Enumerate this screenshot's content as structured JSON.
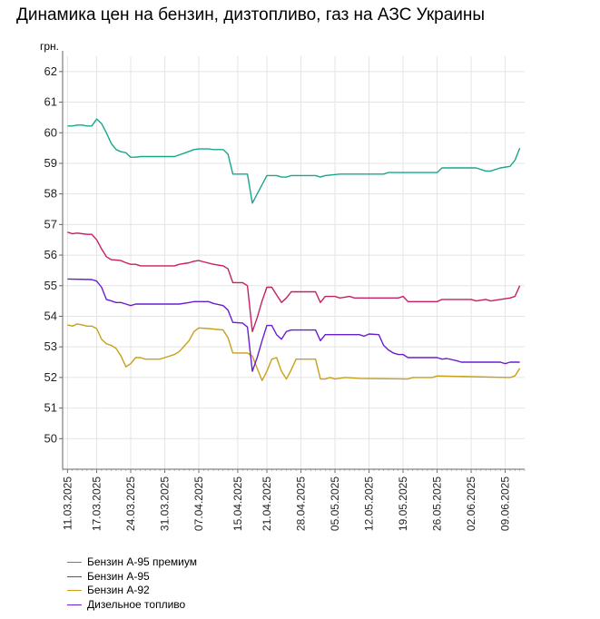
{
  "chart_data": {
    "type": "line",
    "title": "Динамика цен на бензин, дизтопливо, газ на АЗС Украины",
    "ylabel": "грн.",
    "xlabel": "",
    "ylim": [
      49,
      62.5
    ],
    "yticks": [
      50,
      51,
      52,
      53,
      54,
      55,
      56,
      57,
      58,
      59,
      60,
      61,
      62
    ],
    "x_range": [
      "2025-03-10",
      "2025-06-13"
    ],
    "xtick_dates": [
      "2025-03-11",
      "2025-03-17",
      "2025-03-24",
      "2025-03-31",
      "2025-04-07",
      "2025-04-15",
      "2025-04-21",
      "2025-04-28",
      "2025-05-05",
      "2025-05-12",
      "2025-05-19",
      "2025-05-26",
      "2025-06-02",
      "2025-06-09"
    ],
    "xtick_labels": [
      "11.03.2025",
      "17.03.2025",
      "24.03.2025",
      "31.03.2025",
      "07.04.2025",
      "15.04.2025",
      "21.04.2025",
      "28.04.2025",
      "05.05.2025",
      "12.05.2025",
      "19.05.2025",
      "26.05.2025",
      "02.06.2025",
      "09.06.2025"
    ],
    "grid": true,
    "legend_position": "bottom-left",
    "series": [
      {
        "name": "Бензин А-95 премиум",
        "color": "#1aa68c",
        "points": [
          [
            "2025-03-11",
            60.22
          ],
          [
            "2025-03-12",
            60.22
          ],
          [
            "2025-03-13",
            60.25
          ],
          [
            "2025-03-14",
            60.25
          ],
          [
            "2025-03-15",
            60.22
          ],
          [
            "2025-03-16",
            60.22
          ],
          [
            "2025-03-17",
            60.45
          ],
          [
            "2025-03-18",
            60.3
          ],
          [
            "2025-03-19",
            60.0
          ],
          [
            "2025-03-20",
            59.65
          ],
          [
            "2025-03-21",
            59.45
          ],
          [
            "2025-03-22",
            59.38
          ],
          [
            "2025-03-23",
            59.35
          ],
          [
            "2025-03-24",
            59.2
          ],
          [
            "2025-03-25",
            59.2
          ],
          [
            "2025-03-26",
            59.22
          ],
          [
            "2025-03-30",
            59.22
          ],
          [
            "2025-04-02",
            59.22
          ],
          [
            "2025-04-04",
            59.33
          ],
          [
            "2025-04-06",
            59.45
          ],
          [
            "2025-04-07",
            59.47
          ],
          [
            "2025-04-09",
            59.47
          ],
          [
            "2025-04-10",
            59.45
          ],
          [
            "2025-04-12",
            59.45
          ],
          [
            "2025-04-13",
            59.3
          ],
          [
            "2025-04-14",
            58.65
          ],
          [
            "2025-04-16",
            58.65
          ],
          [
            "2025-04-17",
            58.65
          ],
          [
            "2025-04-18",
            57.7
          ],
          [
            "2025-04-19",
            58.0
          ],
          [
            "2025-04-20",
            58.3
          ],
          [
            "2025-04-21",
            58.6
          ],
          [
            "2025-04-23",
            58.6
          ],
          [
            "2025-04-24",
            58.55
          ],
          [
            "2025-04-25",
            58.55
          ],
          [
            "2025-04-26",
            58.6
          ],
          [
            "2025-05-01",
            58.6
          ],
          [
            "2025-05-02",
            58.55
          ],
          [
            "2025-05-03",
            58.6
          ],
          [
            "2025-05-06",
            58.65
          ],
          [
            "2025-05-15",
            58.65
          ],
          [
            "2025-05-16",
            58.7
          ],
          [
            "2025-05-26",
            58.7
          ],
          [
            "2025-05-27",
            58.85
          ],
          [
            "2025-06-03",
            58.85
          ],
          [
            "2025-06-05",
            58.75
          ],
          [
            "2025-06-06",
            58.75
          ],
          [
            "2025-06-08",
            58.85
          ],
          [
            "2025-06-10",
            58.9
          ],
          [
            "2025-06-11",
            59.1
          ],
          [
            "2025-06-12",
            59.5
          ]
        ]
      },
      {
        "name": "Бензин А-95",
        "color": "#c81e64",
        "points": [
          [
            "2025-03-11",
            56.75
          ],
          [
            "2025-03-12",
            56.7
          ],
          [
            "2025-03-13",
            56.72
          ],
          [
            "2025-03-14",
            56.7
          ],
          [
            "2025-03-15",
            56.68
          ],
          [
            "2025-03-16",
            56.68
          ],
          [
            "2025-03-17",
            56.5
          ],
          [
            "2025-03-18",
            56.2
          ],
          [
            "2025-03-19",
            55.95
          ],
          [
            "2025-03-20",
            55.85
          ],
          [
            "2025-03-22",
            55.82
          ],
          [
            "2025-03-23",
            55.75
          ],
          [
            "2025-03-24",
            55.7
          ],
          [
            "2025-03-25",
            55.7
          ],
          [
            "2025-03-26",
            55.65
          ],
          [
            "2025-04-02",
            55.65
          ],
          [
            "2025-04-03",
            55.7
          ],
          [
            "2025-04-05",
            55.75
          ],
          [
            "2025-04-06",
            55.8
          ],
          [
            "2025-04-07",
            55.82
          ],
          [
            "2025-04-08",
            55.78
          ],
          [
            "2025-04-10",
            55.7
          ],
          [
            "2025-04-12",
            55.65
          ],
          [
            "2025-04-13",
            55.55
          ],
          [
            "2025-04-14",
            55.1
          ],
          [
            "2025-04-16",
            55.1
          ],
          [
            "2025-04-17",
            55.0
          ],
          [
            "2025-04-18",
            53.5
          ],
          [
            "2025-04-19",
            53.95
          ],
          [
            "2025-04-20",
            54.5
          ],
          [
            "2025-04-21",
            54.95
          ],
          [
            "2025-04-22",
            54.95
          ],
          [
            "2025-04-23",
            54.7
          ],
          [
            "2025-04-24",
            54.45
          ],
          [
            "2025-04-25",
            54.6
          ],
          [
            "2025-04-26",
            54.8
          ],
          [
            "2025-05-01",
            54.8
          ],
          [
            "2025-05-02",
            54.45
          ],
          [
            "2025-05-03",
            54.65
          ],
          [
            "2025-05-05",
            54.65
          ],
          [
            "2025-05-06",
            54.6
          ],
          [
            "2025-05-08",
            54.65
          ],
          [
            "2025-05-09",
            54.6
          ],
          [
            "2025-05-18",
            54.6
          ],
          [
            "2025-05-19",
            54.65
          ],
          [
            "2025-05-20",
            54.48
          ],
          [
            "2025-05-26",
            54.48
          ],
          [
            "2025-05-27",
            54.55
          ],
          [
            "2025-06-02",
            54.55
          ],
          [
            "2025-06-03",
            54.5
          ],
          [
            "2025-06-05",
            54.55
          ],
          [
            "2025-06-06",
            54.5
          ],
          [
            "2025-06-08",
            54.55
          ],
          [
            "2025-06-10",
            54.6
          ],
          [
            "2025-06-11",
            54.65
          ],
          [
            "2025-06-12",
            55.0
          ]
        ]
      },
      {
        "name": "Бензин А-92",
        "color": "#c8a018",
        "points": [
          [
            "2025-03-11",
            53.72
          ],
          [
            "2025-03-12",
            53.68
          ],
          [
            "2025-03-13",
            53.75
          ],
          [
            "2025-03-14",
            53.72
          ],
          [
            "2025-03-15",
            53.68
          ],
          [
            "2025-03-16",
            53.68
          ],
          [
            "2025-03-17",
            53.6
          ],
          [
            "2025-03-18",
            53.25
          ],
          [
            "2025-03-19",
            53.1
          ],
          [
            "2025-03-20",
            53.05
          ],
          [
            "2025-03-21",
            52.95
          ],
          [
            "2025-03-22",
            52.7
          ],
          [
            "2025-03-23",
            52.35
          ],
          [
            "2025-03-24",
            52.45
          ],
          [
            "2025-03-25",
            52.65
          ],
          [
            "2025-03-26",
            52.65
          ],
          [
            "2025-03-27",
            52.6
          ],
          [
            "2025-03-30",
            52.6
          ],
          [
            "2025-03-31",
            52.65
          ],
          [
            "2025-04-02",
            52.75
          ],
          [
            "2025-04-03",
            52.85
          ],
          [
            "2025-04-05",
            53.2
          ],
          [
            "2025-04-06",
            53.5
          ],
          [
            "2025-04-07",
            53.62
          ],
          [
            "2025-04-09",
            53.6
          ],
          [
            "2025-04-12",
            53.55
          ],
          [
            "2025-04-13",
            53.3
          ],
          [
            "2025-04-14",
            52.8
          ],
          [
            "2025-04-17",
            52.8
          ],
          [
            "2025-04-18",
            52.7
          ],
          [
            "2025-04-19",
            52.3
          ],
          [
            "2025-04-20",
            51.9
          ],
          [
            "2025-04-21",
            52.2
          ],
          [
            "2025-04-22",
            52.6
          ],
          [
            "2025-04-23",
            52.65
          ],
          [
            "2025-04-24",
            52.2
          ],
          [
            "2025-04-25",
            51.95
          ],
          [
            "2025-04-26",
            52.25
          ],
          [
            "2025-04-27",
            52.6
          ],
          [
            "2025-05-01",
            52.6
          ],
          [
            "2025-05-02",
            51.95
          ],
          [
            "2025-05-03",
            51.95
          ],
          [
            "2025-05-04",
            52.0
          ],
          [
            "2025-05-05",
            51.95
          ],
          [
            "2025-05-07",
            52.0
          ],
          [
            "2025-05-10",
            51.97
          ],
          [
            "2025-05-20",
            51.95
          ],
          [
            "2025-05-21",
            52.0
          ],
          [
            "2025-05-25",
            52.0
          ],
          [
            "2025-05-26",
            52.05
          ],
          [
            "2025-06-10",
            52.0
          ],
          [
            "2025-06-11",
            52.05
          ],
          [
            "2025-06-12",
            52.3
          ]
        ]
      },
      {
        "name": "Дизельное топливо",
        "color": "#6a1ed0",
        "points": [
          [
            "2025-03-11",
            55.22
          ],
          [
            "2025-03-16",
            55.2
          ],
          [
            "2025-03-17",
            55.15
          ],
          [
            "2025-03-18",
            54.95
          ],
          [
            "2025-03-19",
            54.55
          ],
          [
            "2025-03-20",
            54.5
          ],
          [
            "2025-03-21",
            54.45
          ],
          [
            "2025-03-22",
            54.45
          ],
          [
            "2025-03-23",
            54.4
          ],
          [
            "2025-03-24",
            54.35
          ],
          [
            "2025-03-25",
            54.4
          ],
          [
            "2025-04-03",
            54.4
          ],
          [
            "2025-04-05",
            54.45
          ],
          [
            "2025-04-06",
            54.48
          ],
          [
            "2025-04-09",
            54.48
          ],
          [
            "2025-04-10",
            54.42
          ],
          [
            "2025-04-12",
            54.35
          ],
          [
            "2025-04-13",
            54.2
          ],
          [
            "2025-04-14",
            53.8
          ],
          [
            "2025-04-16",
            53.78
          ],
          [
            "2025-04-17",
            53.65
          ],
          [
            "2025-04-18",
            52.2
          ],
          [
            "2025-04-19",
            52.65
          ],
          [
            "2025-04-20",
            53.2
          ],
          [
            "2025-04-21",
            53.7
          ],
          [
            "2025-04-22",
            53.7
          ],
          [
            "2025-04-23",
            53.4
          ],
          [
            "2025-04-24",
            53.25
          ],
          [
            "2025-04-25",
            53.5
          ],
          [
            "2025-04-26",
            53.55
          ],
          [
            "2025-05-01",
            53.55
          ],
          [
            "2025-05-02",
            53.2
          ],
          [
            "2025-05-03",
            53.4
          ],
          [
            "2025-05-10",
            53.4
          ],
          [
            "2025-05-11",
            53.35
          ],
          [
            "2025-05-12",
            53.42
          ],
          [
            "2025-05-14",
            53.4
          ],
          [
            "2025-05-15",
            53.05
          ],
          [
            "2025-05-16",
            52.9
          ],
          [
            "2025-05-17",
            52.8
          ],
          [
            "2025-05-18",
            52.75
          ],
          [
            "2025-05-19",
            52.75
          ],
          [
            "2025-05-20",
            52.65
          ],
          [
            "2025-05-26",
            52.65
          ],
          [
            "2025-05-27",
            52.6
          ],
          [
            "2025-05-28",
            52.62
          ],
          [
            "2025-05-30",
            52.55
          ],
          [
            "2025-05-31",
            52.5
          ],
          [
            "2025-06-08",
            52.5
          ],
          [
            "2025-06-09",
            52.45
          ],
          [
            "2025-06-10",
            52.5
          ],
          [
            "2025-06-12",
            52.5
          ]
        ]
      }
    ]
  }
}
